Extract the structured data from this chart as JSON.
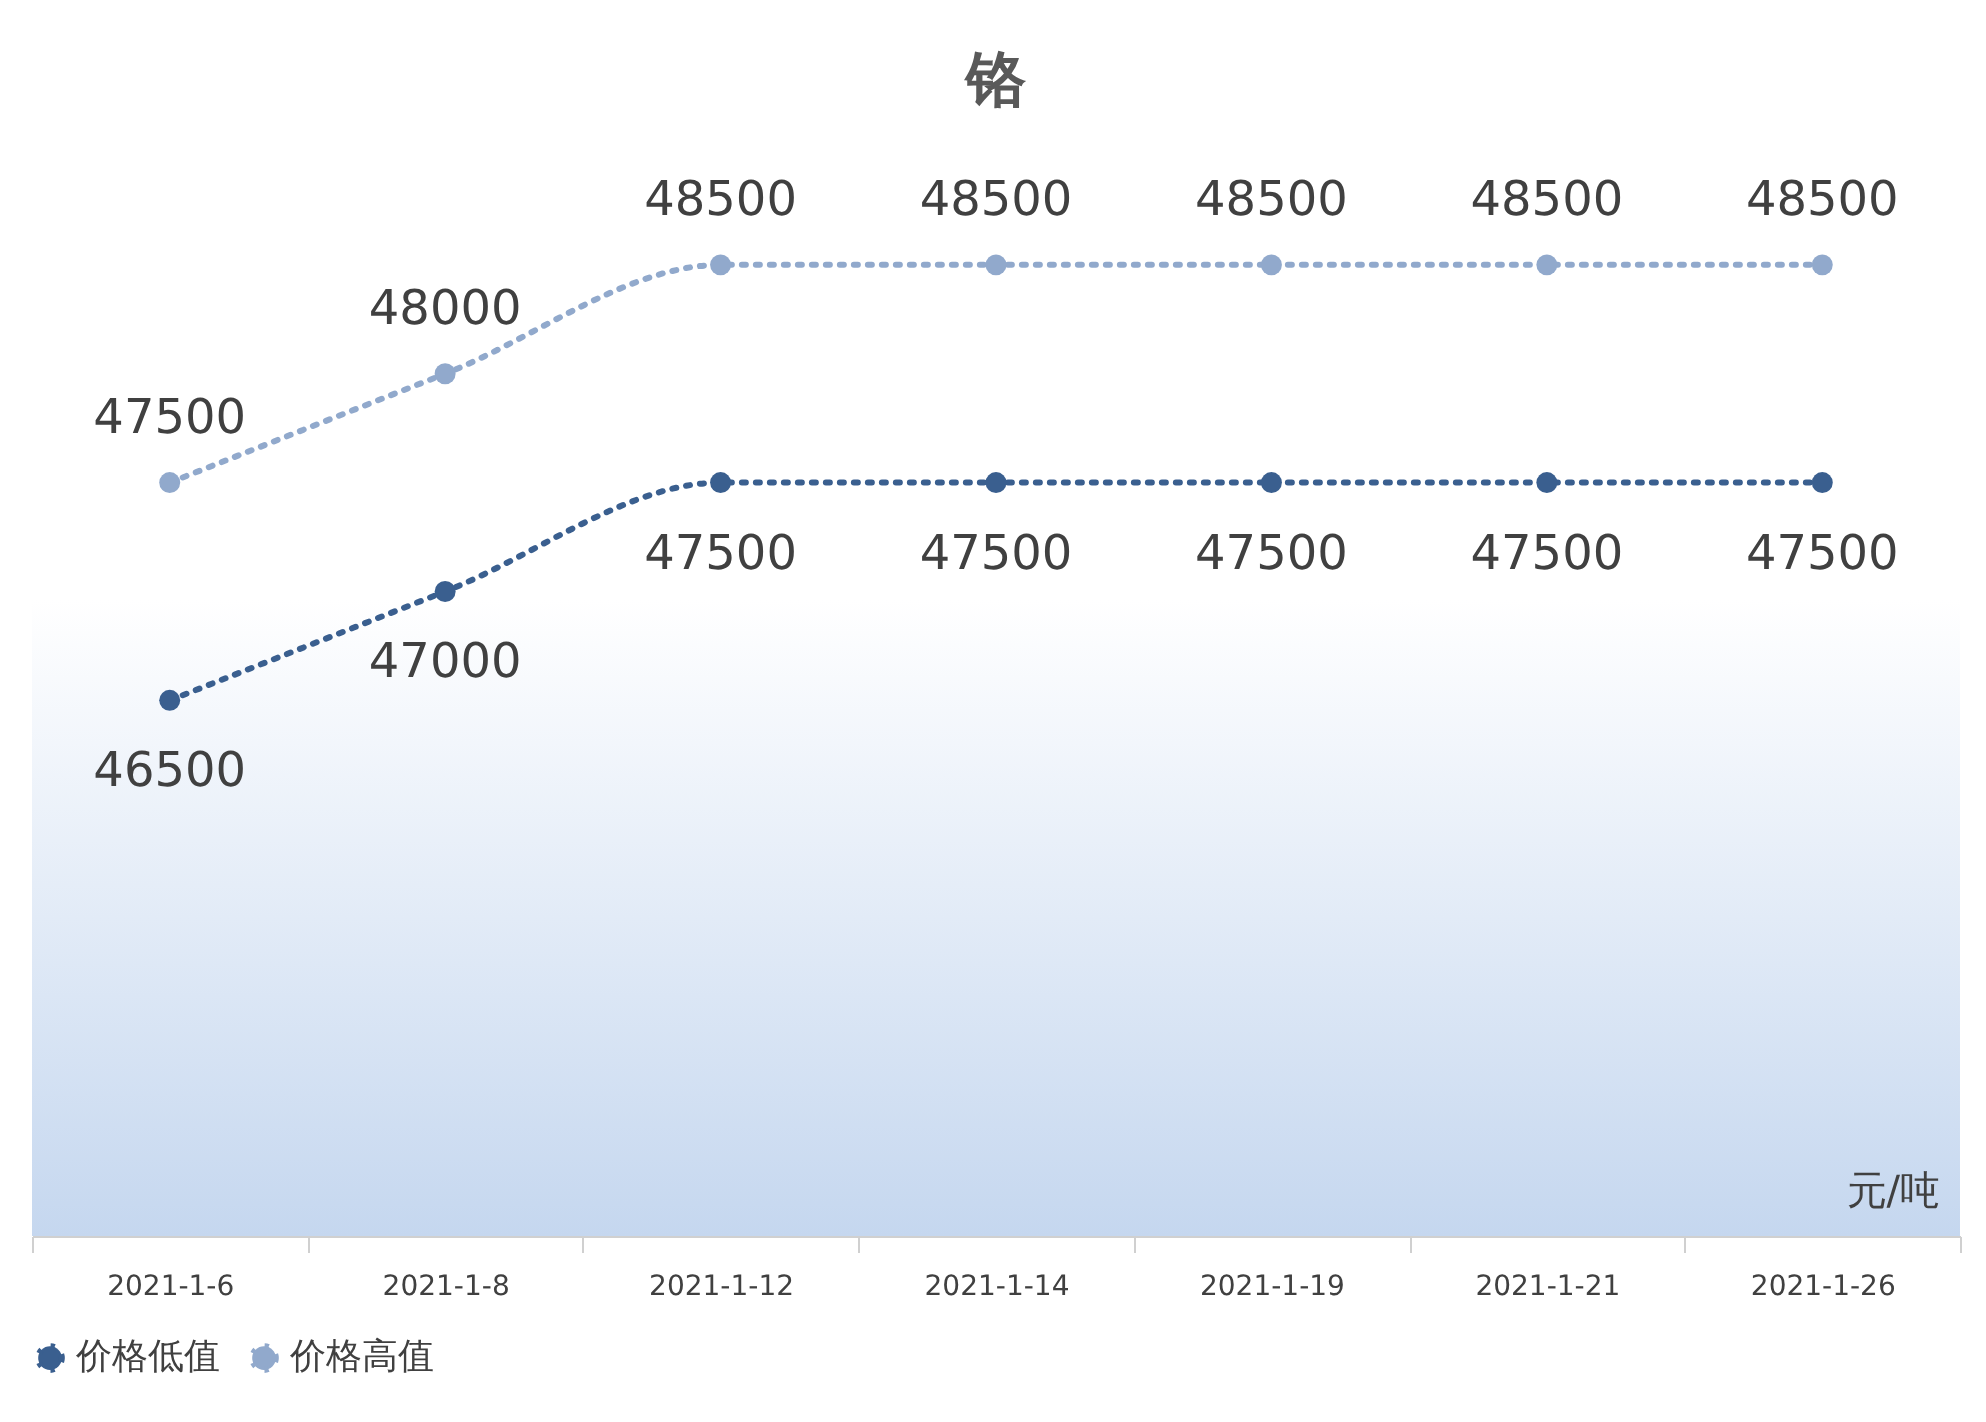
{
  "chart_data": {
    "type": "line",
    "title": "铬",
    "categories": [
      "2021-1-6",
      "2021-1-8",
      "2021-1-12",
      "2021-1-14",
      "2021-1-19",
      "2021-1-21",
      "2021-1-26"
    ],
    "series": [
      {
        "name": "价格低值",
        "color": "#3a5f8f",
        "values": [
          46500,
          47000,
          47500,
          47500,
          47500,
          47500,
          47500
        ]
      },
      {
        "name": "价格高值",
        "color": "#91a9cc",
        "values": [
          47500,
          48000,
          48500,
          48500,
          48500,
          48500,
          48500
        ]
      }
    ],
    "annotations": [
      "元/吨"
    ],
    "data_labels": true,
    "legend": "bottom",
    "marker": "circle",
    "line_style": "dotted",
    "grid": false,
    "tick_labels": "x"
  }
}
